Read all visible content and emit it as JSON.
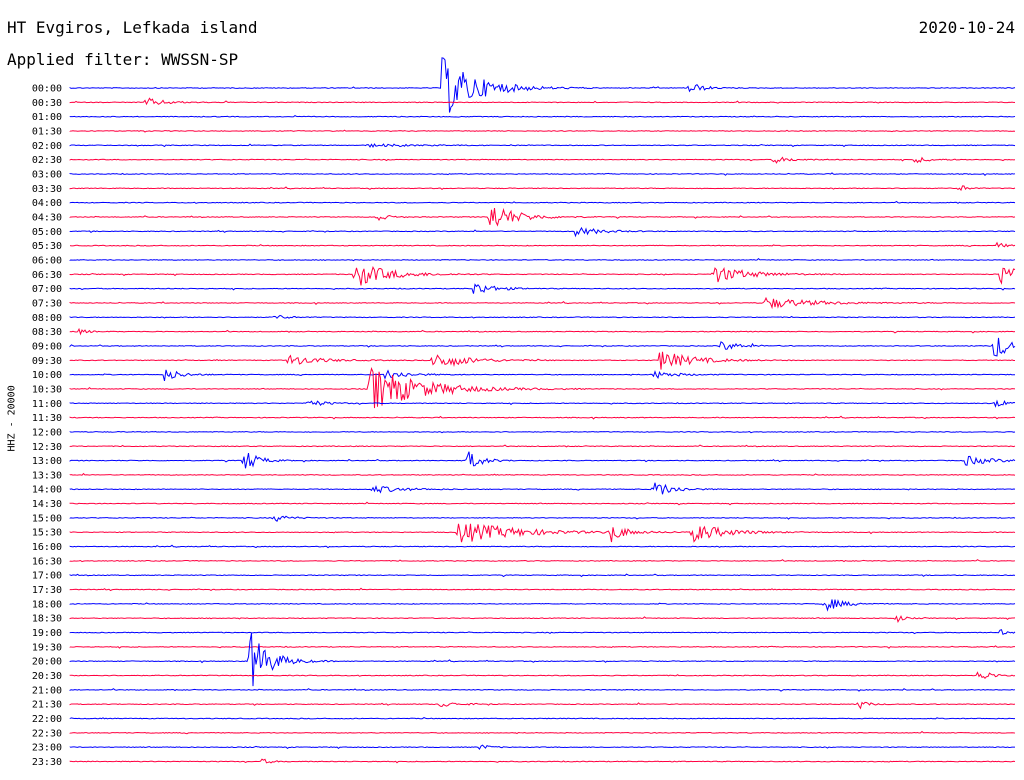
{
  "header": {
    "station": "HT Evgiros, Lefkada island",
    "filter": "Applied filter: WWSSN-SP",
    "date": "2020-10-24"
  },
  "colors": {
    "even_trace": "#0000ff",
    "odd_trace": "#ff0040"
  },
  "chart_data": {
    "type": "line",
    "title": "HT Evgiros, Lefkada island",
    "subtitle": "Applied filter: WWSSN-SP",
    "ylabel": "HHZ - 20000",
    "xlabel": "",
    "rows": [
      "00:00",
      "00:30",
      "01:00",
      "01:30",
      "02:00",
      "02:30",
      "03:00",
      "03:30",
      "04:00",
      "04:30",
      "05:00",
      "05:30",
      "06:00",
      "06:30",
      "07:00",
      "07:30",
      "08:00",
      "08:30",
      "09:00",
      "09:30",
      "10:00",
      "10:30",
      "11:00",
      "11:30",
      "12:00",
      "12:30",
      "13:00",
      "13:30",
      "14:00",
      "14:30",
      "15:00",
      "15:30",
      "16:00",
      "16:30",
      "17:00",
      "17:30",
      "18:00",
      "18:30",
      "19:00",
      "19:30",
      "20:00",
      "20:30",
      "21:00",
      "21:30",
      "22:00",
      "22:30",
      "23:00",
      "23:30"
    ],
    "x_unit": "minutes into row",
    "xlim": [
      0,
      30
    ],
    "events": [
      {
        "row": 0,
        "minute": 11.8,
        "amp": 3.2,
        "dur": 1.6
      },
      {
        "row": 0,
        "minute": 19.6,
        "amp": 0.7,
        "dur": 0.6
      },
      {
        "row": 1,
        "minute": 2.4,
        "amp": 0.45,
        "dur": 0.9
      },
      {
        "row": 4,
        "minute": 9.5,
        "amp": 0.15,
        "dur": 1.8
      },
      {
        "row": 5,
        "minute": 22.3,
        "amp": 0.35,
        "dur": 0.8
      },
      {
        "row": 5,
        "minute": 26.8,
        "amp": 0.3,
        "dur": 0.7
      },
      {
        "row": 7,
        "minute": 28.2,
        "amp": 0.45,
        "dur": 0.3
      },
      {
        "row": 9,
        "minute": 9.7,
        "amp": 0.45,
        "dur": 0.5
      },
      {
        "row": 9,
        "minute": 13.3,
        "amp": 1.5,
        "dur": 1.2
      },
      {
        "row": 10,
        "minute": 16.0,
        "amp": 0.45,
        "dur": 1.2
      },
      {
        "row": 11,
        "minute": 29.4,
        "amp": 0.3,
        "dur": 0.4
      },
      {
        "row": 13,
        "minute": 9.0,
        "amp": 1.4,
        "dur": 1.5
      },
      {
        "row": 13,
        "minute": 20.4,
        "amp": 0.9,
        "dur": 1.6
      },
      {
        "row": 13,
        "minute": 29.5,
        "amp": 1.0,
        "dur": 1.2
      },
      {
        "row": 14,
        "minute": 12.8,
        "amp": 0.7,
        "dur": 0.9
      },
      {
        "row": 15,
        "minute": 22.0,
        "amp": 0.6,
        "dur": 2.2
      },
      {
        "row": 16,
        "minute": 6.5,
        "amp": 0.3,
        "dur": 0.5
      },
      {
        "row": 17,
        "minute": 0.3,
        "amp": 0.3,
        "dur": 0.4
      },
      {
        "row": 18,
        "minute": 20.6,
        "amp": 0.5,
        "dur": 0.9
      },
      {
        "row": 18,
        "minute": 29.3,
        "amp": 1.6,
        "dur": 0.6
      },
      {
        "row": 19,
        "minute": 6.9,
        "amp": 0.6,
        "dur": 1.3
      },
      {
        "row": 19,
        "minute": 11.5,
        "amp": 1.0,
        "dur": 1.4
      },
      {
        "row": 19,
        "minute": 18.7,
        "amp": 1.0,
        "dur": 1.5
      },
      {
        "row": 20,
        "minute": 3.0,
        "amp": 0.7,
        "dur": 0.7
      },
      {
        "row": 20,
        "minute": 10.0,
        "amp": 0.5,
        "dur": 1.0
      },
      {
        "row": 20,
        "minute": 18.5,
        "amp": 0.4,
        "dur": 1.0
      },
      {
        "row": 21,
        "minute": 9.5,
        "amp": 2.4,
        "dur": 2.3
      },
      {
        "row": 22,
        "minute": 7.5,
        "amp": 0.4,
        "dur": 0.8
      },
      {
        "row": 22,
        "minute": 29.3,
        "amp": 0.35,
        "dur": 0.8
      },
      {
        "row": 26,
        "minute": 5.5,
        "amp": 1.3,
        "dur": 0.6
      },
      {
        "row": 26,
        "minute": 12.6,
        "amp": 1.1,
        "dur": 0.6
      },
      {
        "row": 26,
        "minute": 28.4,
        "amp": 0.5,
        "dur": 1.2
      },
      {
        "row": 28,
        "minute": 9.6,
        "amp": 0.4,
        "dur": 1.3
      },
      {
        "row": 28,
        "minute": 18.5,
        "amp": 1.0,
        "dur": 0.8
      },
      {
        "row": 30,
        "minute": 6.5,
        "amp": 0.35,
        "dur": 0.7
      },
      {
        "row": 31,
        "minute": 12.3,
        "amp": 1.2,
        "dur": 2.5
      },
      {
        "row": 31,
        "minute": 17.1,
        "amp": 1.0,
        "dur": 0.7
      },
      {
        "row": 31,
        "minute": 19.7,
        "amp": 1.0,
        "dur": 1.5
      },
      {
        "row": 36,
        "minute": 23.9,
        "amp": 0.9,
        "dur": 0.7
      },
      {
        "row": 37,
        "minute": 26.2,
        "amp": 0.5,
        "dur": 0.3
      },
      {
        "row": 38,
        "minute": 29.5,
        "amp": 0.35,
        "dur": 0.3
      },
      {
        "row": 40,
        "minute": 5.7,
        "amp": 3.2,
        "dur": 0.9
      },
      {
        "row": 41,
        "minute": 28.8,
        "amp": 0.6,
        "dur": 0.6
      },
      {
        "row": 43,
        "minute": 11.7,
        "amp": 0.3,
        "dur": 0.8
      },
      {
        "row": 43,
        "minute": 25.0,
        "amp": 0.5,
        "dur": 0.4
      },
      {
        "row": 46,
        "minute": 13.0,
        "amp": 0.35,
        "dur": 0.4
      },
      {
        "row": 47,
        "minute": 6.1,
        "amp": 0.3,
        "dur": 0.4
      }
    ]
  }
}
